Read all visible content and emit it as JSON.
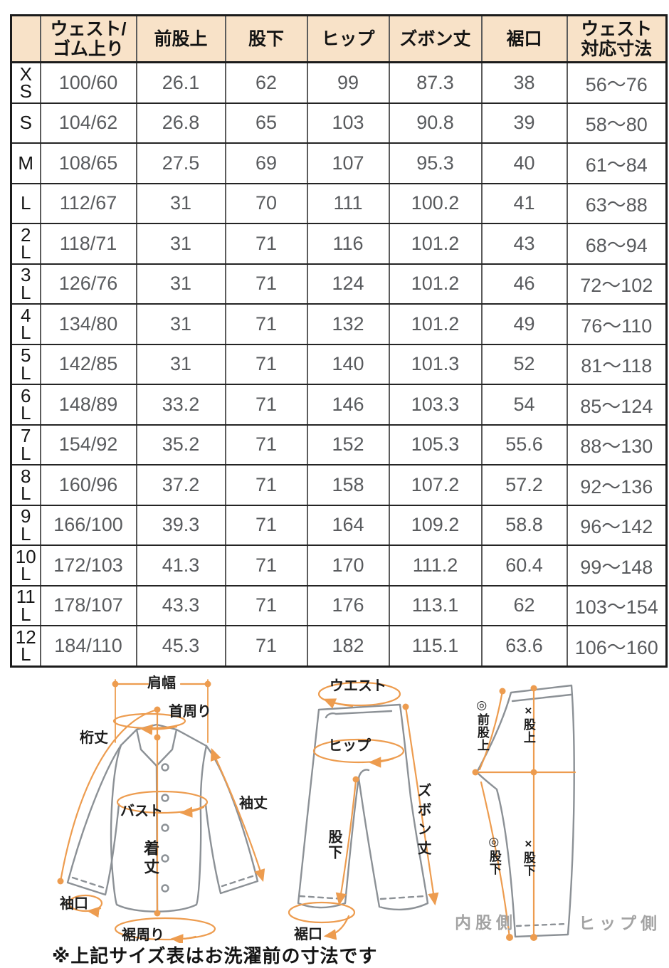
{
  "size_table": {
    "columns": [
      "",
      "ウェスト/\nゴム上り",
      "前股上",
      "股下",
      "ヒップ",
      "ズボン丈",
      "裾口",
      "ウェスト\n対応寸法"
    ],
    "rows": [
      {
        "size": "X\nS",
        "values": [
          "100/60",
          "26.1",
          "62",
          "99",
          "87.3",
          "38",
          "56〜76"
        ]
      },
      {
        "size": "S",
        "values": [
          "104/62",
          "26.8",
          "65",
          "103",
          "90.8",
          "39",
          "58〜80"
        ]
      },
      {
        "size": "M",
        "values": [
          "108/65",
          "27.5",
          "69",
          "107",
          "95.3",
          "40",
          "61〜84"
        ]
      },
      {
        "size": "L",
        "values": [
          "112/67",
          "31",
          "70",
          "111",
          "100.2",
          "41",
          "63〜88"
        ]
      },
      {
        "size": "2\nL",
        "values": [
          "118/71",
          "31",
          "71",
          "116",
          "101.2",
          "43",
          "68〜94"
        ]
      },
      {
        "size": "3\nL",
        "values": [
          "126/76",
          "31",
          "71",
          "124",
          "101.2",
          "46",
          "72〜102"
        ]
      },
      {
        "size": "4\nL",
        "values": [
          "134/80",
          "31",
          "71",
          "132",
          "101.2",
          "49",
          "76〜110"
        ]
      },
      {
        "size": "5\nL",
        "values": [
          "142/85",
          "31",
          "71",
          "140",
          "101.3",
          "52",
          "81〜118"
        ]
      },
      {
        "size": "6\nL",
        "values": [
          "148/89",
          "33.2",
          "71",
          "146",
          "103.3",
          "54",
          "85〜124"
        ]
      },
      {
        "size": "7\nL",
        "values": [
          "154/92",
          "35.2",
          "71",
          "152",
          "105.3",
          "55.6",
          "88〜130"
        ]
      },
      {
        "size": "8\nL",
        "values": [
          "160/96",
          "37.2",
          "71",
          "158",
          "107.2",
          "57.2",
          "92〜136"
        ]
      },
      {
        "size": "9\nL",
        "values": [
          "166/100",
          "39.3",
          "71",
          "164",
          "109.2",
          "58.8",
          "96〜142"
        ]
      },
      {
        "size": "10\nL",
        "values": [
          "172/103",
          "41.3",
          "71",
          "170",
          "111.2",
          "60.4",
          "99〜148"
        ]
      },
      {
        "size": "11\nL",
        "values": [
          "178/107",
          "43.3",
          "71",
          "176",
          "113.1",
          "62",
          "103〜154"
        ]
      },
      {
        "size": "12\nL",
        "values": [
          "184/110",
          "45.3",
          "71",
          "182",
          "115.1",
          "63.6",
          "106〜160"
        ]
      }
    ]
  },
  "diagrams": {
    "shirt": {
      "labels": {
        "shoulder_width": "肩幅",
        "neck_around": "首周り",
        "sleeve_from_center_back": "桁丈",
        "bust": "バスト",
        "sleeve_length": "袖丈",
        "body_length": "着丈",
        "cuff_opening": "袖口",
        "hem_around": "裾周り"
      }
    },
    "pants_front": {
      "labels": {
        "waist": "ウエスト",
        "hip": "ヒップ",
        "pants_length": "ズボン丈",
        "inseam": "股下",
        "hem_opening": "裾口"
      }
    },
    "pants_side": {
      "labels": {
        "front_rise": "◎前股上",
        "rise": "×股上",
        "inseam_inner": "◎股下",
        "inseam_side": "×股下",
        "inner_thigh_side": "内股側",
        "hip_side": "ヒップ側"
      }
    }
  },
  "note": "※上記サイズ表はお洗濯前の寸法です",
  "colors": {
    "header_bg": "#f8e2c8",
    "accent_orange": "#ED9C4F",
    "value_text": "#595b5e",
    "outline_gray": "#8c9196",
    "caption_gray": "#a3a3a3",
    "border_dark": "#1b1b1b"
  }
}
